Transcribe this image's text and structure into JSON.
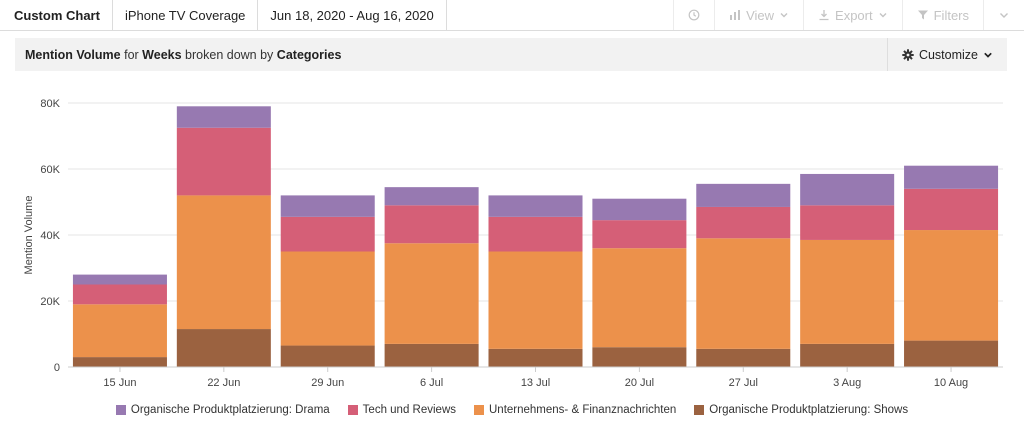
{
  "header": {
    "title": "Custom Chart",
    "query": "iPhone TV Coverage",
    "date_range": "Jun 18, 2020 - Aug 16, 2020",
    "view_label": "View",
    "export_label": "Export",
    "filters_label": "Filters"
  },
  "subheader": {
    "metric": "Mention Volume",
    "for_word": "for",
    "period": "Weeks",
    "broken_word": "broken down by",
    "dimension": "Categories",
    "customize_label": "Customize"
  },
  "chart_data": {
    "type": "bar",
    "stacked": true,
    "ylabel": "Mention Volume",
    "xlabel": "",
    "ylim": [
      0,
      80000
    ],
    "y_ticks": [
      0,
      20000,
      40000,
      60000,
      80000
    ],
    "y_tick_labels": [
      "0",
      "20K",
      "40K",
      "60K",
      "80K"
    ],
    "grid": true,
    "legend_position": "bottom",
    "categories": [
      "15 Jun",
      "22 Jun",
      "29 Jun",
      "6 Jul",
      "13 Jul",
      "20 Jul",
      "27 Jul",
      "3 Aug",
      "10 Aug"
    ],
    "series": [
      {
        "name": "Organische Produktplatzierung: Shows",
        "color": "#9b6240",
        "values": [
          3000,
          11500,
          6500,
          7000,
          5500,
          6000,
          5500,
          7000,
          8000
        ]
      },
      {
        "name": "Unternehmens- & Finanznachrichten",
        "color": "#ec914b",
        "values": [
          16000,
          40500,
          28500,
          30500,
          29500,
          30000,
          33500,
          31500,
          33500
        ]
      },
      {
        "name": "Tech und Reviews",
        "color": "#d55f77",
        "values": [
          6000,
          20500,
          10500,
          11500,
          10500,
          8500,
          9500,
          10500,
          12500
        ]
      },
      {
        "name": "Organische Produktplatzierung: Drama",
        "color": "#9779b1",
        "values": [
          3000,
          6500,
          6500,
          5500,
          6500,
          6500,
          7000,
          9500,
          7000
        ]
      }
    ],
    "legend_order": [
      3,
      2,
      1,
      0
    ]
  }
}
